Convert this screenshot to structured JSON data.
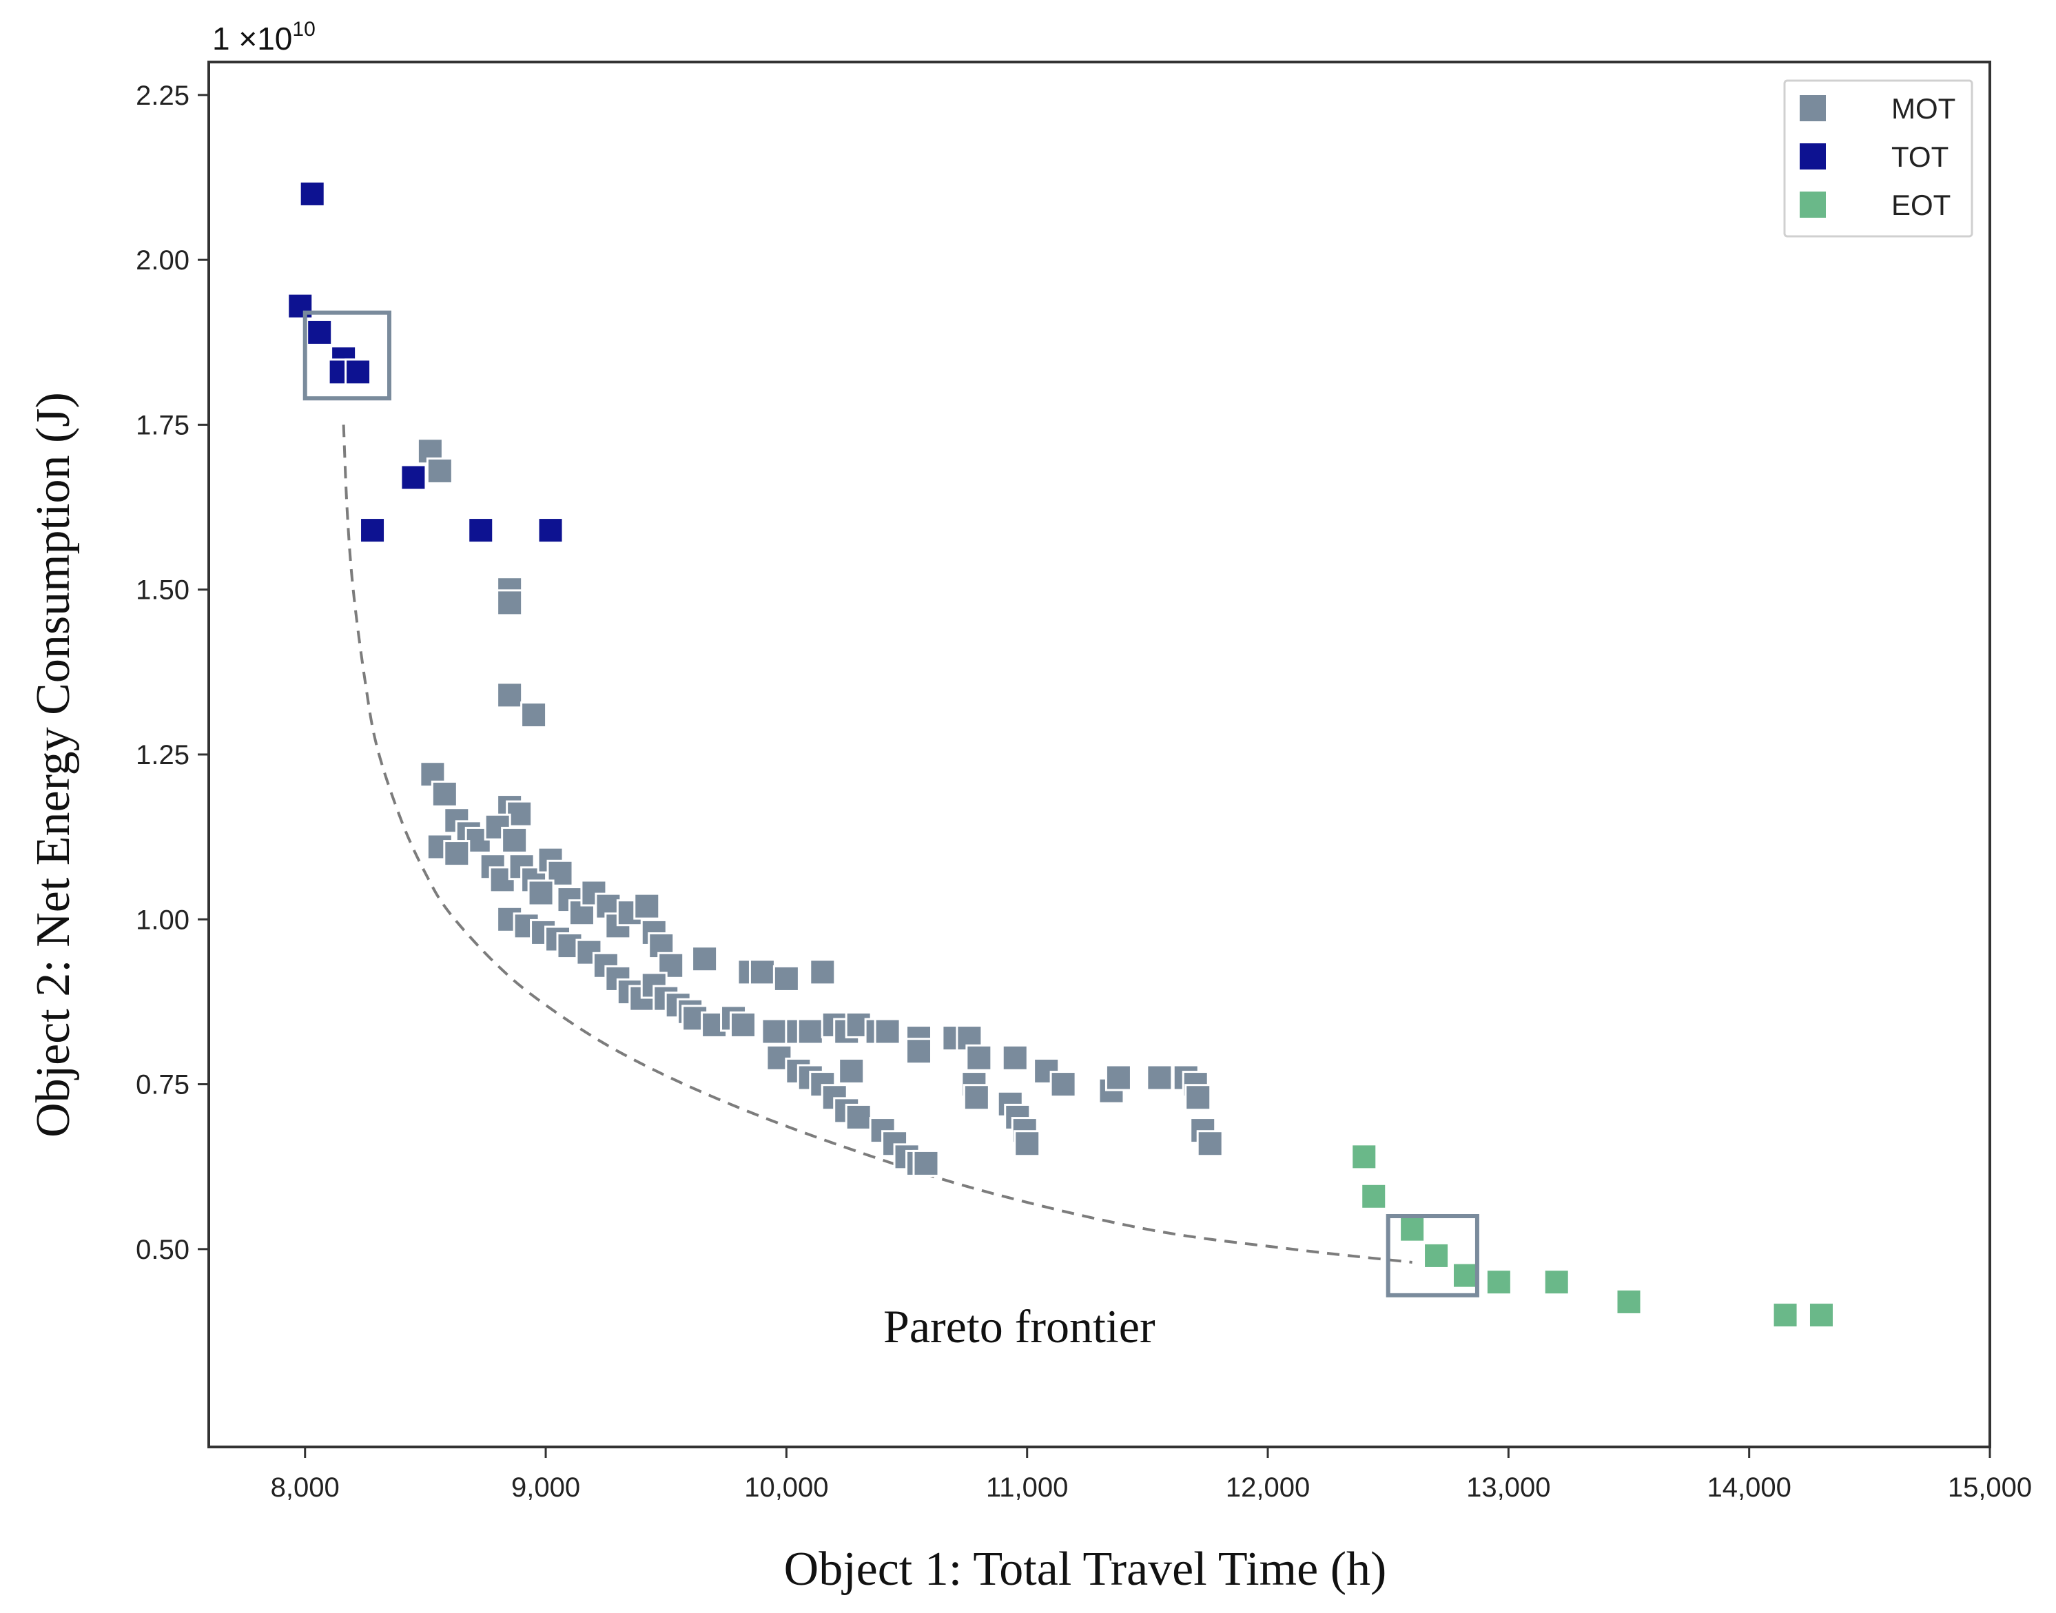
{
  "chart_data": {
    "type": "scatter",
    "title": "",
    "xlabel": "Object 1: Total Travel Time (h)",
    "ylabel": "Object 2: Net Energy Consumption (J)",
    "y_multiplier_base": "1 ×10",
    "y_multiplier_exp": "10",
    "xlim": [
      7600,
      15000
    ],
    "ylim": [
      0.2,
      2.3
    ],
    "xticks": [
      8000,
      9000,
      10000,
      11000,
      12000,
      13000,
      14000,
      15000
    ],
    "xtick_labels": [
      "8,000",
      "9,000",
      "10,000",
      "11,000",
      "12,000",
      "13,000",
      "14,000",
      "15,000"
    ],
    "yticks": [
      0.5,
      0.75,
      1.0,
      1.25,
      1.5,
      1.75,
      2.0,
      2.25
    ],
    "ytick_labels": [
      "0.50",
      "0.75",
      "1.00",
      "1.25",
      "1.50",
      "1.75",
      "2.00",
      "2.25"
    ],
    "legend_position": "top-right",
    "series": [
      {
        "name": "MOT",
        "color": "#7a8b9c",
        "points": [
          [
            8520,
            1.71
          ],
          [
            8560,
            1.68
          ],
          [
            8850,
            1.5
          ],
          [
            8850,
            1.48
          ],
          [
            8850,
            1.34
          ],
          [
            8950,
            1.31
          ],
          [
            8530,
            1.22
          ],
          [
            8580,
            1.19
          ],
          [
            8630,
            1.15
          ],
          [
            8680,
            1.13
          ],
          [
            8720,
            1.12
          ],
          [
            8560,
            1.11
          ],
          [
            8630,
            1.1
          ],
          [
            8850,
            1.17
          ],
          [
            8890,
            1.16
          ],
          [
            8800,
            1.14
          ],
          [
            8870,
            1.12
          ],
          [
            8780,
            1.08
          ],
          [
            8820,
            1.06
          ],
          [
            8900,
            1.08
          ],
          [
            8950,
            1.06
          ],
          [
            9020,
            1.09
          ],
          [
            9060,
            1.07
          ],
          [
            8980,
            1.04
          ],
          [
            9100,
            1.03
          ],
          [
            9150,
            1.01
          ],
          [
            9200,
            1.04
          ],
          [
            9260,
            1.02
          ],
          [
            9300,
            0.99
          ],
          [
            9350,
            1.01
          ],
          [
            9420,
            1.02
          ],
          [
            9450,
            0.98
          ],
          [
            9480,
            0.96
          ],
          [
            9520,
            0.93
          ],
          [
            8850,
            1.0
          ],
          [
            8920,
            0.99
          ],
          [
            8990,
            0.98
          ],
          [
            9050,
            0.97
          ],
          [
            9100,
            0.96
          ],
          [
            9180,
            0.95
          ],
          [
            9250,
            0.93
          ],
          [
            9300,
            0.91
          ],
          [
            9350,
            0.89
          ],
          [
            9400,
            0.88
          ],
          [
            9450,
            0.9
          ],
          [
            9500,
            0.88
          ],
          [
            9550,
            0.87
          ],
          [
            9600,
            0.86
          ],
          [
            9620,
            0.85
          ],
          [
            9660,
            0.94
          ],
          [
            9700,
            0.84
          ],
          [
            9780,
            0.85
          ],
          [
            9820,
            0.84
          ],
          [
            9850,
            0.92
          ],
          [
            9900,
            0.92
          ],
          [
            9950,
            0.83
          ],
          [
            10000,
            0.91
          ],
          [
            10050,
            0.83
          ],
          [
            10100,
            0.83
          ],
          [
            10150,
            0.92
          ],
          [
            10200,
            0.84
          ],
          [
            10250,
            0.83
          ],
          [
            10300,
            0.84
          ],
          [
            10380,
            0.83
          ],
          [
            10420,
            0.83
          ],
          [
            9970,
            0.79
          ],
          [
            10050,
            0.77
          ],
          [
            10100,
            0.76
          ],
          [
            10150,
            0.75
          ],
          [
            10200,
            0.73
          ],
          [
            10250,
            0.71
          ],
          [
            10300,
            0.7
          ],
          [
            10270,
            0.77
          ],
          [
            10400,
            0.68
          ],
          [
            10450,
            0.66
          ],
          [
            10500,
            0.64
          ],
          [
            10550,
            0.63
          ],
          [
            10580,
            0.63
          ],
          [
            10550,
            0.82
          ],
          [
            10550,
            0.8
          ],
          [
            10700,
            0.82
          ],
          [
            10760,
            0.82
          ],
          [
            10800,
            0.79
          ],
          [
            10780,
            0.75
          ],
          [
            10790,
            0.73
          ],
          [
            10950,
            0.79
          ],
          [
            10930,
            0.72
          ],
          [
            10960,
            0.7
          ],
          [
            10990,
            0.68
          ],
          [
            11000,
            0.66
          ],
          [
            11080,
            0.77
          ],
          [
            11150,
            0.75
          ],
          [
            11350,
            0.74
          ],
          [
            11380,
            0.76
          ],
          [
            11550,
            0.76
          ],
          [
            11660,
            0.76
          ],
          [
            11700,
            0.75
          ],
          [
            11710,
            0.73
          ],
          [
            11730,
            0.68
          ],
          [
            11760,
            0.66
          ]
        ]
      },
      {
        "name": "TOT",
        "color": "#0d1291",
        "points": [
          [
            8030,
            2.1
          ],
          [
            7980,
            1.93
          ],
          [
            8060,
            1.89
          ],
          [
            8160,
            1.85
          ],
          [
            8150,
            1.83
          ],
          [
            8220,
            1.83
          ],
          [
            8450,
            1.67
          ],
          [
            8280,
            1.59
          ],
          [
            8730,
            1.59
          ],
          [
            9020,
            1.59
          ]
        ]
      },
      {
        "name": "EOT",
        "color": "#6ab889",
        "points": [
          [
            12400,
            0.64
          ],
          [
            12440,
            0.58
          ],
          [
            12600,
            0.53
          ],
          [
            12700,
            0.49
          ],
          [
            12820,
            0.46
          ],
          [
            12960,
            0.45
          ],
          [
            13200,
            0.45
          ],
          [
            13500,
            0.42
          ],
          [
            14150,
            0.4
          ],
          [
            14300,
            0.4
          ]
        ]
      }
    ],
    "pareto_curve": {
      "label": "Pareto frontier",
      "x": [
        8160,
        8175,
        8200,
        8250,
        8300,
        8400,
        8500,
        8600,
        8800,
        9000,
        9300,
        9700,
        10200,
        10800,
        11500,
        12100,
        12600
      ],
      "y": [
        1.75,
        1.62,
        1.5,
        1.36,
        1.26,
        1.15,
        1.07,
        1.01,
        0.93,
        0.87,
        0.8,
        0.73,
        0.66,
        0.59,
        0.53,
        0.5,
        0.48
      ]
    },
    "highlight_boxes": [
      {
        "x": [
          8000,
          8350
        ],
        "y": [
          1.79,
          1.92
        ]
      },
      {
        "x": [
          12500,
          12870
        ],
        "y": [
          0.43,
          0.55
        ]
      }
    ]
  }
}
